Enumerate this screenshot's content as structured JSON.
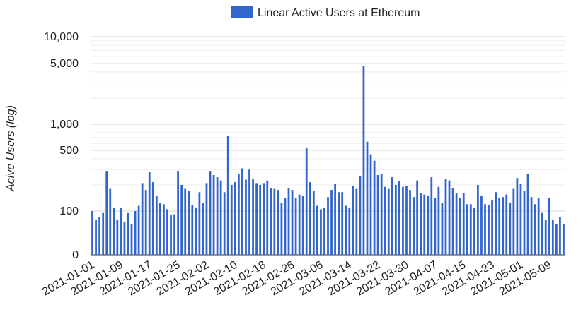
{
  "chart_data": {
    "type": "bar",
    "title": "",
    "xlabel": "",
    "ylabel": "Acive Users (log)",
    "scale": "log",
    "legend": {
      "position": "top",
      "items": [
        {
          "label": "Linear Active Users at Ethereum",
          "color": "#3366cc"
        }
      ]
    },
    "y_ticks": [
      {
        "value": 0,
        "label": "0"
      },
      {
        "value": 100,
        "label": "100"
      },
      {
        "value": 500,
        "label": "500"
      },
      {
        "value": 1000,
        "label": "1,000"
      },
      {
        "value": 5000,
        "label": "5,000"
      },
      {
        "value": 10000,
        "label": "10,000"
      }
    ],
    "x_tick_labels": [
      "2021-01-01",
      "2021-01-09",
      "2021-01-17",
      "2021-01-25",
      "2021-02-02",
      "2021-02-10",
      "2021-02-18",
      "2021-02-26",
      "2021-03-06",
      "2021-03-14",
      "2021-03-22",
      "2021-03-30",
      "2021-04-07",
      "2021-04-15",
      "2021-04-23",
      "2021-05-01",
      "2021-05-09"
    ],
    "series": [
      {
        "name": "Linear Active Users at Ethereum",
        "color": "#3366cc",
        "x_start": "2021-01-01",
        "x_end": "2021-05-13",
        "values": [
          100,
          80,
          85,
          95,
          290,
          180,
          110,
          80,
          110,
          75,
          95,
          70,
          100,
          115,
          210,
          175,
          280,
          215,
          150,
          125,
          120,
          105,
          90,
          92,
          290,
          200,
          180,
          170,
          118,
          110,
          165,
          125,
          210,
          290,
          260,
          245,
          225,
          165,
          740,
          200,
          215,
          270,
          310,
          230,
          300,
          235,
          210,
          200,
          210,
          225,
          185,
          180,
          175,
          125,
          140,
          185,
          175,
          140,
          155,
          150,
          540,
          215,
          170,
          115,
          105,
          110,
          145,
          175,
          205,
          165,
          165,
          115,
          110,
          195,
          180,
          250,
          4700,
          630,
          450,
          380,
          260,
          270,
          190,
          180,
          245,
          200,
          220,
          190,
          195,
          175,
          145,
          225,
          160,
          155,
          150,
          245,
          140,
          190,
          125,
          235,
          225,
          185,
          160,
          140,
          160,
          120,
          120,
          110,
          200,
          150,
          120,
          118,
          135,
          165,
          140,
          145,
          155,
          125,
          180,
          240,
          205,
          170,
          270,
          145,
          120,
          140,
          95,
          80,
          140,
          80,
          70,
          85,
          70
        ]
      }
    ]
  }
}
